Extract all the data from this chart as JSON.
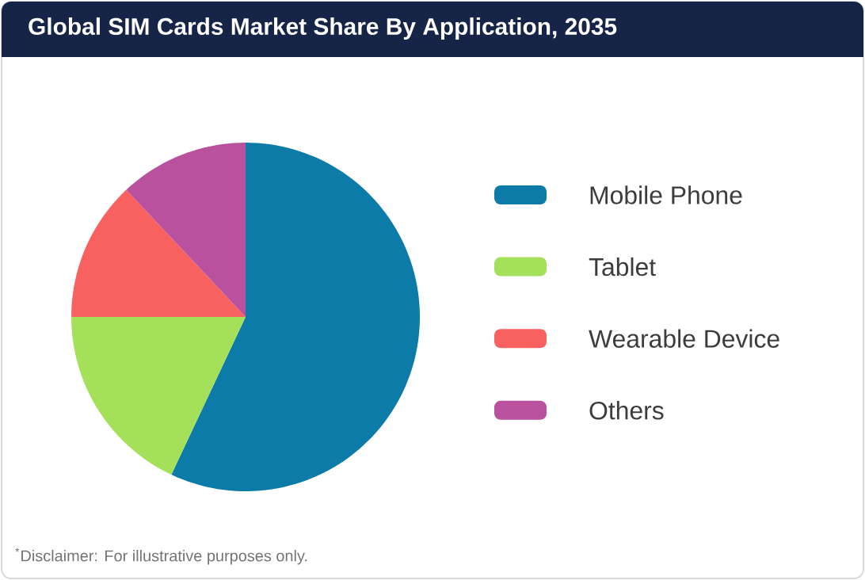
{
  "chart_data": {
    "type": "pie",
    "title": "Global SIM Cards Market Share By Application, 2035",
    "categories": [
      "Mobile Phone",
      "Tablet",
      "Wearable Device",
      "Others"
    ],
    "values": [
      57,
      18,
      13,
      12
    ],
    "colors": [
      "#0c7ba8",
      "#a5e05a",
      "#f96060",
      "#b9519e"
    ],
    "legend": "right",
    "annotations": [
      "$^{*}$Disclaimer: For illustrative purposes only."
    ]
  }
}
